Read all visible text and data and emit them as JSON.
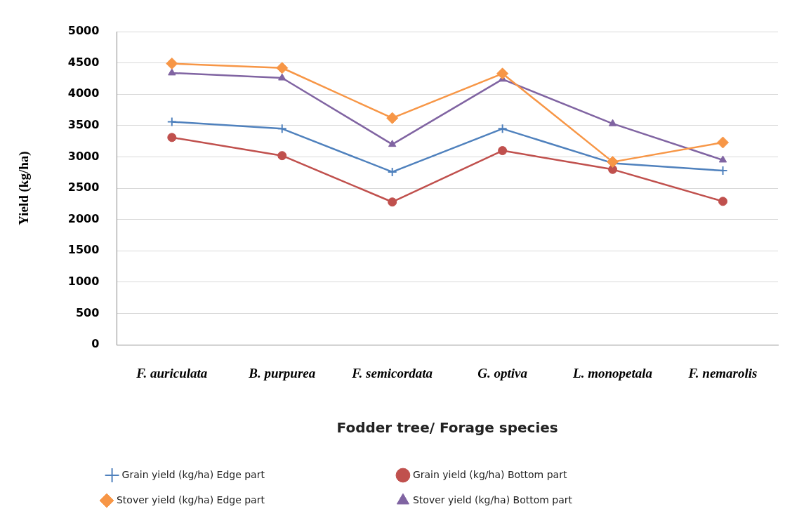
{
  "chart_data": {
    "type": "line",
    "xlabel": "Fodder tree/ Forage species",
    "ylabel": "Yield (kg/ha)",
    "categories": [
      "F. auriculata",
      "B. purpurea",
      "F. semicordata",
      "G. optiva",
      "L. monopetala",
      "F. nemarolis"
    ],
    "series": [
      {
        "name": "Grain yield (kg/ha) Edge part",
        "color": "#4f81bd",
        "marker": "cross",
        "values": [
          3560,
          3450,
          2760,
          3450,
          2900,
          2780
        ]
      },
      {
        "name": "Grain yield (kg/ha) Bottom part",
        "color": "#c0504d",
        "marker": "circle",
        "values": [
          3310,
          3020,
          2280,
          3100,
          2800,
          2290
        ]
      },
      {
        "name": "Stover yield (kg/ha) Edge part",
        "color": "#f79646",
        "marker": "diamond",
        "values": [
          4490,
          4420,
          3620,
          4330,
          2920,
          3230
        ]
      },
      {
        "name": "Stover yield (kg/ha) Bottom part",
        "color": "#8064a2",
        "marker": "triangle",
        "values": [
          4340,
          4260,
          3200,
          4240,
          3530,
          2950
        ]
      }
    ],
    "ylim": [
      0,
      5000
    ],
    "yticks": [
      0,
      500,
      1000,
      1500,
      2000,
      2500,
      3000,
      3500,
      4000,
      4500,
      5000
    ],
    "grid": "y",
    "legend": "bottom"
  }
}
